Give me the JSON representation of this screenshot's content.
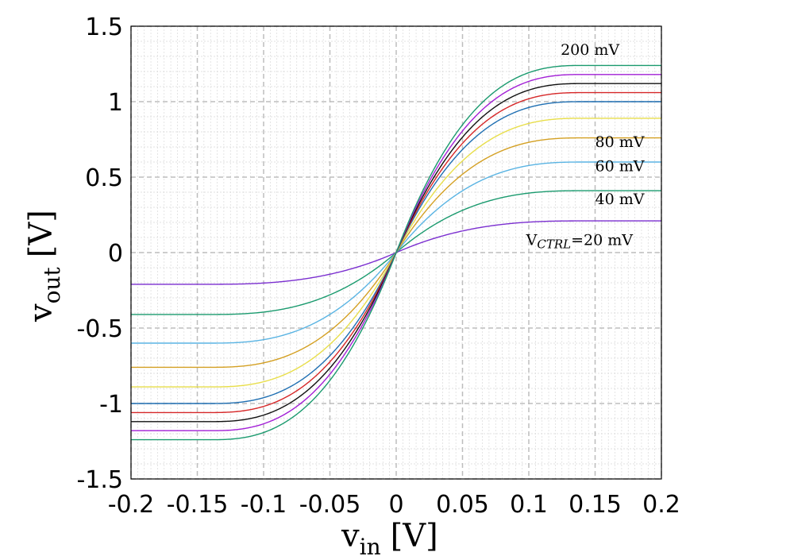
{
  "chart_data": {
    "type": "line",
    "xlabel_main": "v",
    "xlabel_sub": "in",
    "xlabel_unit": "[V]",
    "ylabel_main": "v",
    "ylabel_sub": "out",
    "ylabel_unit": "[V]",
    "xlim": [
      -0.2,
      0.2
    ],
    "ylim": [
      -1.5,
      1.5
    ],
    "x_ticks": [
      -0.2,
      -0.15,
      -0.1,
      -0.05,
      0,
      0.05,
      0.1,
      0.15,
      0.2
    ],
    "x_tick_labels": [
      "-0.2",
      "-0.15",
      "-0.1",
      "-0.05",
      "0",
      "0.05",
      "0.1",
      "0.15",
      "0.2"
    ],
    "y_ticks": [
      -1.5,
      -1,
      -0.5,
      0,
      0.5,
      1,
      1.5
    ],
    "y_tick_labels": [
      "-1.5",
      "-1",
      "-0.5",
      "0",
      "0.5",
      "1",
      "1.5"
    ],
    "grid": true,
    "saturation_x": 0.14,
    "annotations": [
      {
        "text": "200 mV",
        "x": 0.124,
        "y": 1.31
      },
      {
        "text": "80 mV",
        "x": 0.15,
        "y": 0.7
      },
      {
        "text": "60 mV",
        "x": 0.15,
        "y": 0.54
      },
      {
        "text": "40 mV",
        "x": 0.15,
        "y": 0.32
      },
      {
        "text_main": "V",
        "text_sub": "CTRL",
        "text_rest": "=20 mV",
        "x": 0.098,
        "y": 0.05
      }
    ],
    "series": [
      {
        "color": "#7b2fd0",
        "saturation": 0.21
      },
      {
        "color": "#1a9a6e",
        "saturation": 0.41
      },
      {
        "color": "#5ab4e3",
        "saturation": 0.6
      },
      {
        "color": "#d4a023",
        "saturation": 0.76
      },
      {
        "color": "#e8de4a",
        "saturation": 0.89
      },
      {
        "color": "#1f6fb2",
        "saturation": 1.0
      },
      {
        "color": "#d62728",
        "saturation": 1.06
      },
      {
        "color": "#111111",
        "saturation": 1.12
      },
      {
        "color": "#a21fd6",
        "saturation": 1.18
      },
      {
        "color": "#1a9a6e",
        "saturation": 1.24
      }
    ]
  }
}
